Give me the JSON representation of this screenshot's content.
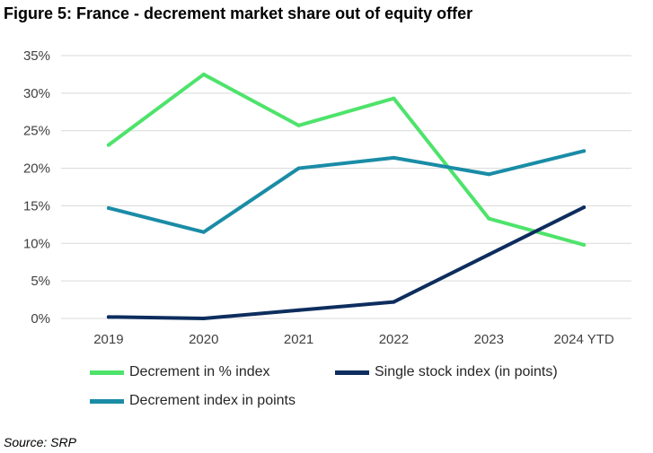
{
  "title": "Figure 5: France - decrement market share out of equity offer",
  "source": "Source: SRP",
  "chart_data": {
    "type": "line",
    "categories": [
      "2019",
      "2020",
      "2021",
      "2022",
      "2023",
      "2024 YTD"
    ],
    "ylim": [
      0,
      35
    ],
    "yticks": [
      0,
      5,
      10,
      15,
      20,
      25,
      30,
      35
    ],
    "ytick_labels": [
      "0%",
      "5%",
      "10%",
      "15%",
      "20%",
      "25%",
      "30%",
      "35%"
    ],
    "y_unit": "%",
    "grid": true,
    "legend_position": "bottom",
    "xlabel": "",
    "ylabel": "",
    "series": [
      {
        "name": "Decrement in % index",
        "color": "#4ee36b",
        "values": [
          23.1,
          32.5,
          25.7,
          29.3,
          13.3,
          9.8
        ]
      },
      {
        "name": "Single stock index (in points)",
        "color": "#0d2d5e",
        "values": [
          0.2,
          0.0,
          1.1,
          2.2,
          8.5,
          14.8
        ]
      },
      {
        "name": "Decrement index in points",
        "color": "#1a8ca6",
        "values": [
          14.7,
          11.5,
          20.0,
          21.4,
          19.2,
          22.3
        ]
      }
    ]
  }
}
